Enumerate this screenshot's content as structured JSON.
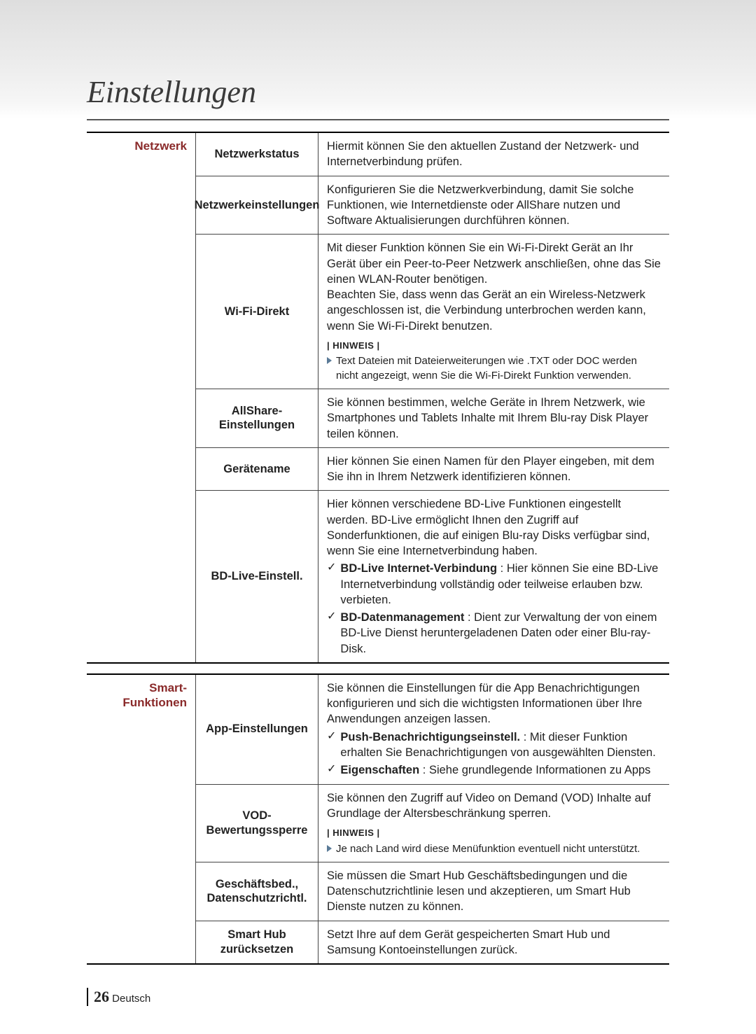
{
  "pageTitle": "Einstellungen",
  "pageNumber": "26",
  "pageLang": "Deutsch",
  "colors": {
    "categoryText": "#8a2a2a",
    "triangle": "#5a7a97",
    "headerGradientTop": "#dedede",
    "headerGradientBottom": "#ffffff"
  },
  "sections": [
    {
      "category": "Netzwerk",
      "rows": [
        {
          "setting": "Netzwerkstatus",
          "desc": "Hiermit können Sie den aktuellen Zustand der Netzwerk- und Internetverbindung prüfen."
        },
        {
          "setting": "Netzwerkeinstellungen",
          "desc": "Konfigurieren Sie die Netzwerkverbindung, damit Sie solche Funktionen, wie Internetdienste oder AllShare nutzen und Software Aktualisierungen durchführen können."
        },
        {
          "setting": "Wi-Fi-Direkt",
          "desc": "Mit dieser Funktion können Sie ein Wi-Fi-Direkt Gerät an Ihr Gerät über ein Peer-to-Peer Netzwerk anschließen, ohne das Sie einen WLAN-Router benötigen.\nBeachten Sie, dass wenn das Gerät an ein Wireless-Netzwerk angeschlossen ist, die Verbindung unterbrochen werden kann, wenn Sie Wi-Fi-Direkt benutzen.",
          "hinweis": "HINWEIS",
          "notes": [
            "Text Dateien mit Dateierweiterungen wie .TXT oder DOC werden nicht angezeigt, wenn Sie die Wi-Fi-Direkt Funktion verwenden."
          ]
        },
        {
          "setting": "AllShare-Einstellungen",
          "desc": "Sie können bestimmen, welche Geräte in Ihrem Netzwerk, wie Smartphones und Tablets Inhalte mit Ihrem Blu-ray Disk Player teilen können."
        },
        {
          "setting": "Gerätename",
          "desc": "Hier können Sie einen Namen für den Player eingeben, mit dem Sie ihn in Ihrem Netzwerk identifizieren können."
        },
        {
          "setting": "BD-Live-Einstell.",
          "desc": "Hier können verschiedene BD-Live Funktionen eingestellt werden. BD-Live ermöglicht Ihnen den Zugriff auf Sonderfunktionen, die auf einigen Blu-ray Disks verfügbar sind, wenn Sie eine Internetverbindung haben.",
          "subs": [
            {
              "bold": "BD-Live Internet-Verbindung",
              "rest": " : Hier können Sie eine BD-Live Internetverbindung vollständig oder teilweise erlauben bzw. verbieten."
            },
            {
              "bold": "BD-Datenmanagement",
              "rest": " : Dient zur Verwaltung der von einem BD-Live Dienst heruntergeladenen Daten oder einer Blu-ray-Disk."
            }
          ]
        }
      ]
    },
    {
      "category": "Smart-Funktionen",
      "rows": [
        {
          "setting": "App-Einstellungen",
          "desc": "Sie können die Einstellungen für die App Benachrichtigungen konfigurieren und sich die wichtigsten Informationen über Ihre Anwendungen anzeigen lassen.",
          "subs": [
            {
              "bold": "Push-Benachrichtigungseinstell.",
              "rest": " : Mit dieser Funktion erhalten Sie Benachrichtigungen von ausgewählten Diensten."
            },
            {
              "bold": "Eigenschaften",
              "rest": " : Siehe grundlegende Informationen zu Apps"
            }
          ]
        },
        {
          "setting": "VOD-Bewertungssperre",
          "desc": "Sie können den Zugriff auf Video on Demand (VOD) Inhalte auf Grundlage der Altersbeschränkung sperren.",
          "hinweis": "HINWEIS",
          "notes": [
            "Je nach Land wird diese Menüfunktion eventuell nicht unterstützt."
          ]
        },
        {
          "setting": "Geschäftsbed., Datenschutzrichtl.",
          "desc": "Sie müssen die Smart Hub Geschäftsbedingungen und die Datenschutzrichtlinie lesen und akzeptieren, um Smart Hub Dienste nutzen zu können."
        },
        {
          "setting": "Smart Hub zurücksetzen",
          "desc": "Setzt Ihre auf dem Gerät gespeicherten Smart Hub und Samsung Kontoeinstellungen zurück."
        }
      ]
    }
  ]
}
